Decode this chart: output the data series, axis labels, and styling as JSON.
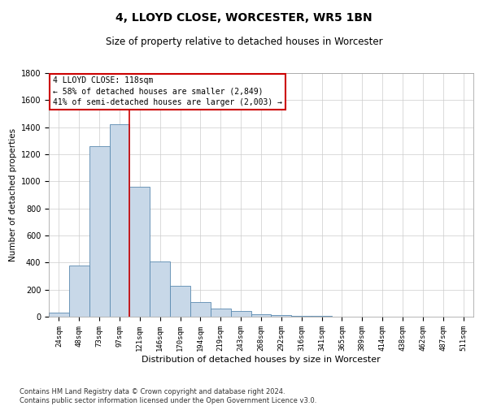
{
  "title": "4, LLOYD CLOSE, WORCESTER, WR5 1BN",
  "subtitle": "Size of property relative to detached houses in Worcester",
  "xlabel": "Distribution of detached houses by size in Worcester",
  "ylabel": "Number of detached properties",
  "footnote": "Contains HM Land Registry data © Crown copyright and database right 2024.\nContains public sector information licensed under the Open Government Licence v3.0.",
  "bar_color": "#c8d8e8",
  "bar_edge_color": "#5a8ab0",
  "vline_color": "#cc0000",
  "vline_x_index": 4,
  "annotation_text_line1": "4 LLOYD CLOSE: 118sqm",
  "annotation_text_line2": "← 58% of detached houses are smaller (2,849)",
  "annotation_text_line3": "41% of semi-detached houses are larger (2,003) →",
  "categories": [
    "24sqm",
    "48sqm",
    "73sqm",
    "97sqm",
    "121sqm",
    "146sqm",
    "170sqm",
    "194sqm",
    "219sqm",
    "243sqm",
    "268sqm",
    "292sqm",
    "316sqm",
    "341sqm",
    "365sqm",
    "389sqm",
    "414sqm",
    "438sqm",
    "462sqm",
    "487sqm",
    "511sqm"
  ],
  "values": [
    30,
    380,
    1260,
    1420,
    960,
    410,
    230,
    110,
    60,
    40,
    20,
    12,
    8,
    5,
    3,
    2,
    1,
    1,
    1,
    1,
    1
  ],
  "ylim": [
    0,
    1800
  ],
  "yticks": [
    0,
    200,
    400,
    600,
    800,
    1000,
    1200,
    1400,
    1600,
    1800
  ],
  "background_color": "#ffffff",
  "grid_color": "#cccccc",
  "title_fontsize": 10,
  "subtitle_fontsize": 8.5,
  "ylabel_fontsize": 7.5,
  "xlabel_fontsize": 8,
  "tick_fontsize": 6.5,
  "annot_fontsize": 7,
  "footnote_fontsize": 6
}
